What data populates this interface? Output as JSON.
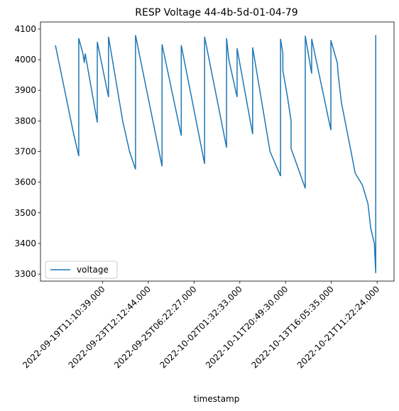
{
  "chart_data": {
    "type": "line",
    "title": "RESP Voltage 44-4b-5d-01-04-79",
    "xlabel": "timestamp",
    "legend": "lower left",
    "x": [
      -0.3,
      2.0,
      3.5,
      4.8,
      4.8,
      5.7,
      6.0,
      6.2,
      8.85,
      8.85,
      11.3,
      11.3,
      14.4,
      15.9,
      17.2,
      17.2,
      23.0,
      23.0,
      27.2,
      27.2,
      32.3,
      32.3,
      37.1,
      37.1,
      37.6,
      39.4,
      39.4,
      42.8,
      42.8,
      46.6,
      48.9,
      48.9,
      49.4,
      49.4,
      50.4,
      51.2,
      51.2,
      54.3,
      54.3,
      55.7,
      55.7,
      59.9,
      59.9,
      61.3,
      61.5,
      62.2,
      64.3,
      65.2,
      66.8,
      68.0,
      68.6,
      69.4,
      69.7,
      69.7
    ],
    "series": [
      {
        "name": "voltage",
        "color": "#1f77b4",
        "values": [
          4047,
          3880,
          3770,
          3685,
          4070,
          4020,
          3990,
          4020,
          3795,
          4058,
          3878,
          4075,
          3800,
          3700,
          3642,
          4080,
          3652,
          4050,
          3752,
          4047,
          3660,
          4075,
          3713,
          4070,
          4000,
          3878,
          4037,
          3757,
          4040,
          3700,
          3620,
          4068,
          4020,
          3965,
          3880,
          3800,
          3710,
          3580,
          4078,
          3955,
          4068,
          3770,
          4063,
          3990,
          3950,
          3860,
          3700,
          3630,
          3590,
          3530,
          3450,
          3400,
          3303,
          4080
        ]
      }
    ],
    "xlim": [
      -3.57,
      73.7
    ],
    "ylim": [
      3277,
      4123
    ],
    "xticks": [
      {
        "value": 10,
        "label": "2022-09-19T11:10:39.000"
      },
      {
        "value": 20,
        "label": "2022-09-23T12:12:44.000"
      },
      {
        "value": 30,
        "label": "2022-09-25T06:22:27.000"
      },
      {
        "value": 40,
        "label": "2022-10-02T01:32:33.000"
      },
      {
        "value": 50,
        "label": "2022-10-11T20:49:30.000"
      },
      {
        "value": 60,
        "label": "2022-10-13T16:05:35.000"
      },
      {
        "value": 70,
        "label": "2022-10-21T11:22:24.000"
      }
    ],
    "yticks": [
      3300,
      3400,
      3500,
      3600,
      3700,
      3800,
      3900,
      4000,
      4100
    ]
  }
}
